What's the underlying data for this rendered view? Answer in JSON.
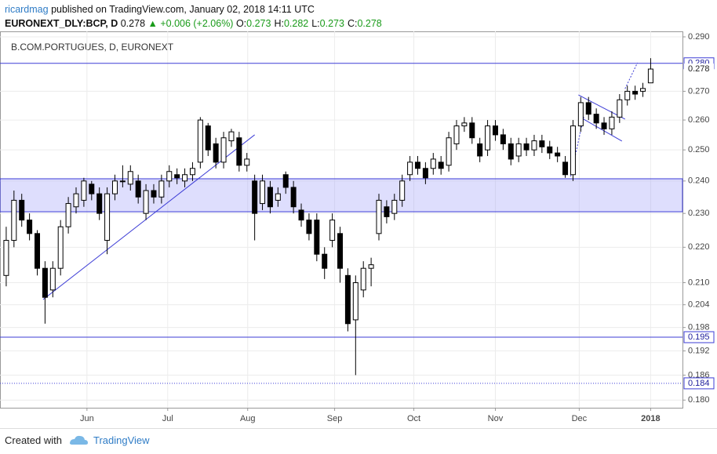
{
  "header": {
    "author": "ricardmag",
    "published": "published on TradingView.com, January 02, 2018 14:11 UTC",
    "symbol": "EURONEXT_DLY:BCP, D",
    "price": "0.278",
    "change": "▲ +0.006 (+2.06%)",
    "ohlc": [
      {
        "key": "O:",
        "value": "0.273"
      },
      {
        "key": "H:",
        "value": "0.282"
      },
      {
        "key": "L:",
        "value": "0.273"
      },
      {
        "key": "C:",
        "value": "0.278"
      }
    ]
  },
  "footer": {
    "prefix": "Created with",
    "brand": "TradingView"
  },
  "chart_data": {
    "type": "candlestick",
    "title": "B.COM.PORTUGUES, D, EURONEXT",
    "categories": [
      null,
      null,
      null,
      null,
      null,
      null,
      null,
      null,
      null,
      null,
      null,
      null,
      null,
      null,
      null,
      null,
      null,
      null,
      null,
      null,
      null,
      null,
      null,
      null,
      null,
      null,
      null,
      null,
      null,
      null,
      null,
      null,
      null,
      null,
      null,
      null,
      null,
      null,
      null,
      null,
      null,
      null,
      null,
      null,
      null,
      null,
      null,
      null,
      null,
      null,
      null,
      null,
      null,
      null,
      null,
      null,
      null,
      null,
      null,
      null,
      null,
      null,
      null,
      null,
      null,
      null,
      null,
      null,
      null,
      null,
      null,
      null,
      null,
      null,
      null,
      null,
      null,
      null,
      null,
      null,
      null,
      null,
      null,
      null
    ],
    "open": [
      0.212,
      0.222,
      0.234,
      0.228,
      0.224,
      0.214,
      0.208,
      0.214,
      0.226,
      0.232,
      0.234,
      0.239,
      0.236,
      0.222,
      0.236,
      0.24,
      0.239,
      0.24,
      0.23,
      0.237,
      0.235,
      0.24,
      0.242,
      0.24,
      0.242,
      0.246,
      0.258,
      0.252,
      0.246,
      0.253,
      0.254,
      0.245,
      0.24,
      0.233,
      0.238,
      0.234,
      0.242,
      0.238,
      0.231,
      0.228,
      0.228,
      0.218,
      0.222,
      0.224,
      0.212,
      0.2,
      0.208,
      0.214,
      0.224,
      0.232,
      0.23,
      0.234,
      0.242,
      0.246,
      0.244,
      0.244,
      0.246,
      0.245,
      0.252,
      0.258,
      0.259,
      0.252,
      0.25,
      0.258,
      0.255,
      0.252,
      0.248,
      0.252,
      0.25,
      0.253,
      0.251,
      0.249,
      0.246,
      0.242,
      0.258,
      0.266,
      0.262,
      0.259,
      0.257,
      0.261,
      0.267,
      0.27,
      0.27,
      0.273
    ],
    "high": [
      0.226,
      0.237,
      0.236,
      0.23,
      0.225,
      0.216,
      0.216,
      0.228,
      0.235,
      0.238,
      0.241,
      0.24,
      0.238,
      0.238,
      0.242,
      0.245,
      0.245,
      0.242,
      0.239,
      0.239,
      0.242,
      0.245,
      0.244,
      0.244,
      0.246,
      0.261,
      0.259,
      0.254,
      0.256,
      0.257,
      0.256,
      0.249,
      0.242,
      0.242,
      0.24,
      0.238,
      0.243,
      0.24,
      0.233,
      0.23,
      0.23,
      0.22,
      0.23,
      0.226,
      0.214,
      0.212,
      0.216,
      0.217,
      0.236,
      0.234,
      0.236,
      0.242,
      0.248,
      0.248,
      0.246,
      0.249,
      0.248,
      0.256,
      0.26,
      0.261,
      0.261,
      0.254,
      0.26,
      0.26,
      0.257,
      0.254,
      0.254,
      0.254,
      0.255,
      0.255,
      0.253,
      0.251,
      0.248,
      0.26,
      0.268,
      0.268,
      0.264,
      0.261,
      0.263,
      0.269,
      0.272,
      0.272,
      0.273,
      0.282
    ],
    "low": [
      0.209,
      0.22,
      0.226,
      0.222,
      0.212,
      0.199,
      0.206,
      0.212,
      0.224,
      0.23,
      0.232,
      0.234,
      0.228,
      0.218,
      0.234,
      0.238,
      0.237,
      0.233,
      0.228,
      0.233,
      0.233,
      0.238,
      0.239,
      0.238,
      0.24,
      0.244,
      0.248,
      0.244,
      0.244,
      0.251,
      0.243,
      0.243,
      0.222,
      0.231,
      0.23,
      0.232,
      0.236,
      0.23,
      0.226,
      0.222,
      0.216,
      0.211,
      0.22,
      0.21,
      0.197,
      0.186,
      0.206,
      0.209,
      0.222,
      0.227,
      0.228,
      0.232,
      0.24,
      0.242,
      0.239,
      0.242,
      0.242,
      0.243,
      0.25,
      0.256,
      0.252,
      0.246,
      0.248,
      0.253,
      0.25,
      0.245,
      0.246,
      0.248,
      0.248,
      0.249,
      0.247,
      0.246,
      0.241,
      0.24,
      0.256,
      0.26,
      0.257,
      0.255,
      0.255,
      0.259,
      0.265,
      0.267,
      0.268,
      0.273
    ],
    "close": [
      0.222,
      0.234,
      0.228,
      0.224,
      0.214,
      0.206,
      0.214,
      0.226,
      0.233,
      0.236,
      0.24,
      0.236,
      0.23,
      0.236,
      0.24,
      0.24,
      0.243,
      0.235,
      0.237,
      0.235,
      0.24,
      0.243,
      0.241,
      0.242,
      0.244,
      0.26,
      0.25,
      0.246,
      0.254,
      0.256,
      0.245,
      0.247,
      0.23,
      0.24,
      0.232,
      0.236,
      0.238,
      0.232,
      0.228,
      0.224,
      0.218,
      0.214,
      0.228,
      0.214,
      0.199,
      0.21,
      0.214,
      0.215,
      0.234,
      0.229,
      0.234,
      0.24,
      0.246,
      0.244,
      0.241,
      0.247,
      0.244,
      0.254,
      0.258,
      0.259,
      0.254,
      0.248,
      0.258,
      0.255,
      0.252,
      0.247,
      0.252,
      0.25,
      0.253,
      0.251,
      0.249,
      0.248,
      0.242,
      0.258,
      0.266,
      0.262,
      0.259,
      0.257,
      0.261,
      0.267,
      0.27,
      0.269,
      0.271,
      0.278
    ],
    "up_color": "#ffffff",
    "down_color": "#000000",
    "wick_color": "#000000",
    "line_color": "#3d3dd6",
    "xlim": [
      -0.8,
      87.1
    ],
    "xticks": [
      {
        "value": 10.4,
        "label": "Jun"
      },
      {
        "value": 20.8,
        "label": "Jul"
      },
      {
        "value": 31.1,
        "label": "Aug"
      },
      {
        "value": 42.3,
        "label": "Sep"
      },
      {
        "value": 52.5,
        "label": "Oct"
      },
      {
        "value": 63.0,
        "label": "Nov"
      },
      {
        "value": 73.8,
        "label": "Dec"
      },
      {
        "value": 83,
        "label": "2018"
      }
    ],
    "ylim": [
      0.1782,
      0.2921
    ],
    "log_scale": true,
    "grid": true,
    "yticks": [
      {
        "value": 0.29,
        "label": "0.290"
      },
      {
        "value": 0.27,
        "label": "0.270"
      },
      {
        "value": 0.26,
        "label": "0.260"
      },
      {
        "value": 0.25,
        "label": "0.250"
      },
      {
        "value": 0.24,
        "label": "0.240"
      },
      {
        "value": 0.23,
        "label": "0.230"
      },
      {
        "value": 0.22,
        "label": "0.220"
      },
      {
        "value": 0.21,
        "label": "0.210"
      },
      {
        "value": 0.204,
        "label": "0.204"
      },
      {
        "value": 0.198,
        "label": "0.198"
      },
      {
        "value": 0.192,
        "label": "0.192"
      },
      {
        "value": 0.186,
        "label": "0.186"
      },
      {
        "value": 0.18,
        "label": "0.180"
      }
    ],
    "last_price": {
      "value": 0.278,
      "label": "0.278"
    },
    "levels": [
      {
        "value": 0.2801,
        "label": "0.280",
        "style": "solid"
      },
      {
        "value": 0.1955,
        "label": "0.195",
        "style": "solid"
      },
      {
        "value": 0.184,
        "label": "0.184",
        "style": "dotted"
      }
    ],
    "zone": [
      0.2305,
      0.2407
    ],
    "trendlines": [
      {
        "x": [
          4.75,
          32.0
        ],
        "y": [
          0.2054,
          0.255
        ],
        "style": "solid"
      },
      {
        "x": [
          73.7,
          79.7
        ],
        "y": [
          0.2687,
          0.2603
        ],
        "style": "solid"
      },
      {
        "x": [
          73.7,
          79.3
        ],
        "y": [
          0.2613,
          0.2529
        ],
        "style": "solid"
      },
      {
        "x": [
          72.7,
          74.4
        ],
        "y": [
          0.2414,
          0.2613
        ],
        "style": "dotted"
      },
      {
        "x": [
          79.7,
          81.3
        ],
        "y": [
          0.2709,
          0.2803
        ],
        "style": "dotted"
      }
    ]
  }
}
